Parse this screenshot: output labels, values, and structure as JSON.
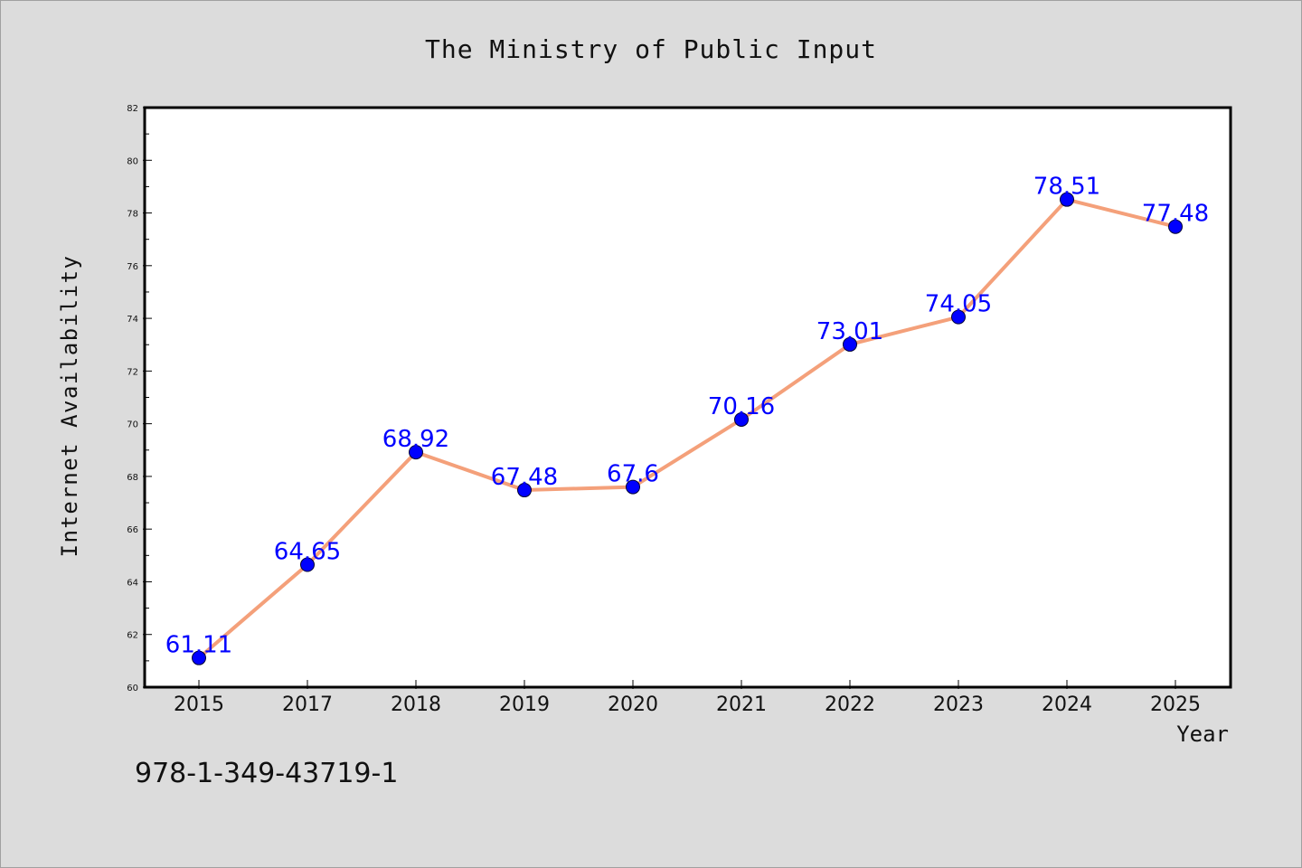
{
  "chart_data": {
    "type": "line",
    "title": "The Ministry of Public Input",
    "xlabel": "Year",
    "ylabel": "Internet Availability",
    "categories": [
      "2015",
      "2017",
      "2018",
      "2019",
      "2020",
      "2021",
      "2022",
      "2023",
      "2024",
      "2025"
    ],
    "series": [
      {
        "values": [
          61.11,
          64.65,
          68.92,
          67.48,
          67.6,
          70.16,
          73.01,
          74.05,
          78.51,
          77.48
        ],
        "data_labels": [
          "61.11",
          "64.65",
          "68.92",
          "67.48",
          "67.6",
          "70.16",
          "73.01",
          "74.05",
          "78.51",
          "77.48"
        ]
      }
    ],
    "ylim": [
      60,
      82
    ],
    "yticks": [
      "60",
      "62",
      "64",
      "66",
      "68",
      "70",
      "72",
      "74",
      "76",
      "78",
      "80",
      "82"
    ],
    "grid": false,
    "line_color": "#f4a07a",
    "marker_color": "#0000ff",
    "label_color": "#0000ff"
  },
  "footer": {
    "isbn": "978-1-349-43719-1"
  }
}
